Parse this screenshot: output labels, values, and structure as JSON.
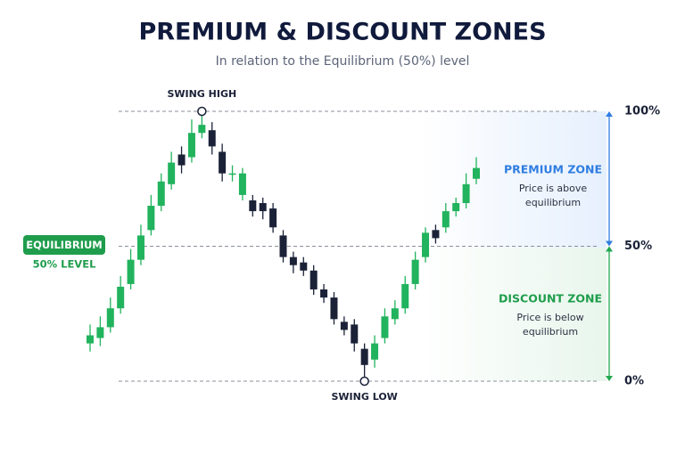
{
  "chart_data": {
    "type": "candlestick",
    "title": "PREMIUM & DISCOUNT ZONES",
    "subtitle": "In relation to the Equilibrium (50%) level",
    "ylim": [
      0,
      100
    ],
    "yticks": [
      {
        "value": 0,
        "label": "0%"
      },
      {
        "value": 50,
        "label": "50%"
      },
      {
        "value": 100,
        "label": "100%"
      }
    ],
    "up_color": "#21b35d",
    "down_color": "#1b2238",
    "open": [
      14,
      16,
      20,
      27,
      36,
      45,
      56,
      65,
      73,
      84,
      83,
      92,
      93,
      85,
      77,
      69,
      67,
      66,
      64,
      54,
      46,
      44,
      41,
      34,
      31,
      22,
      21,
      12,
      8,
      16,
      23,
      27,
      36,
      46,
      56,
      57,
      63,
      66,
      75
    ],
    "high": [
      21,
      24,
      31,
      39,
      49,
      58,
      69,
      77,
      85,
      87,
      97,
      100,
      96,
      88,
      80,
      79,
      69,
      68,
      66,
      56,
      48,
      46,
      43,
      36,
      33,
      24,
      23,
      14,
      17,
      27,
      30,
      39,
      48,
      57,
      58,
      66,
      68,
      77,
      83
    ],
    "low": [
      11,
      13,
      18,
      25,
      34,
      43,
      54,
      63,
      71,
      77,
      81,
      90,
      84,
      74,
      74,
      67,
      61,
      60,
      55,
      44,
      40,
      39,
      32,
      29,
      21,
      17,
      11,
      0,
      5,
      14,
      21,
      25,
      34,
      44,
      51,
      55,
      61,
      64,
      73
    ],
    "close": [
      17,
      20,
      27,
      35,
      45,
      54,
      65,
      74,
      81,
      80,
      92,
      95,
      87,
      77,
      77,
      77,
      63,
      63,
      57,
      46,
      43,
      41,
      34,
      31,
      23,
      19,
      14,
      6,
      14,
      24,
      27,
      36,
      45,
      55,
      53,
      63,
      66,
      73,
      79
    ],
    "annotations": {
      "swing_high": "SWING HIGH",
      "swing_low": "SWING LOW",
      "equilibrium": "EQUILIBRIUM",
      "equilibrium_level": "50% LEVEL",
      "premium_title": "PREMIUM ZONE",
      "premium_text": [
        "Price is above",
        "equilibrium"
      ],
      "discount_title": "DISCOUNT ZONE",
      "discount_text": [
        "Price is below",
        "equilibrium"
      ]
    }
  }
}
